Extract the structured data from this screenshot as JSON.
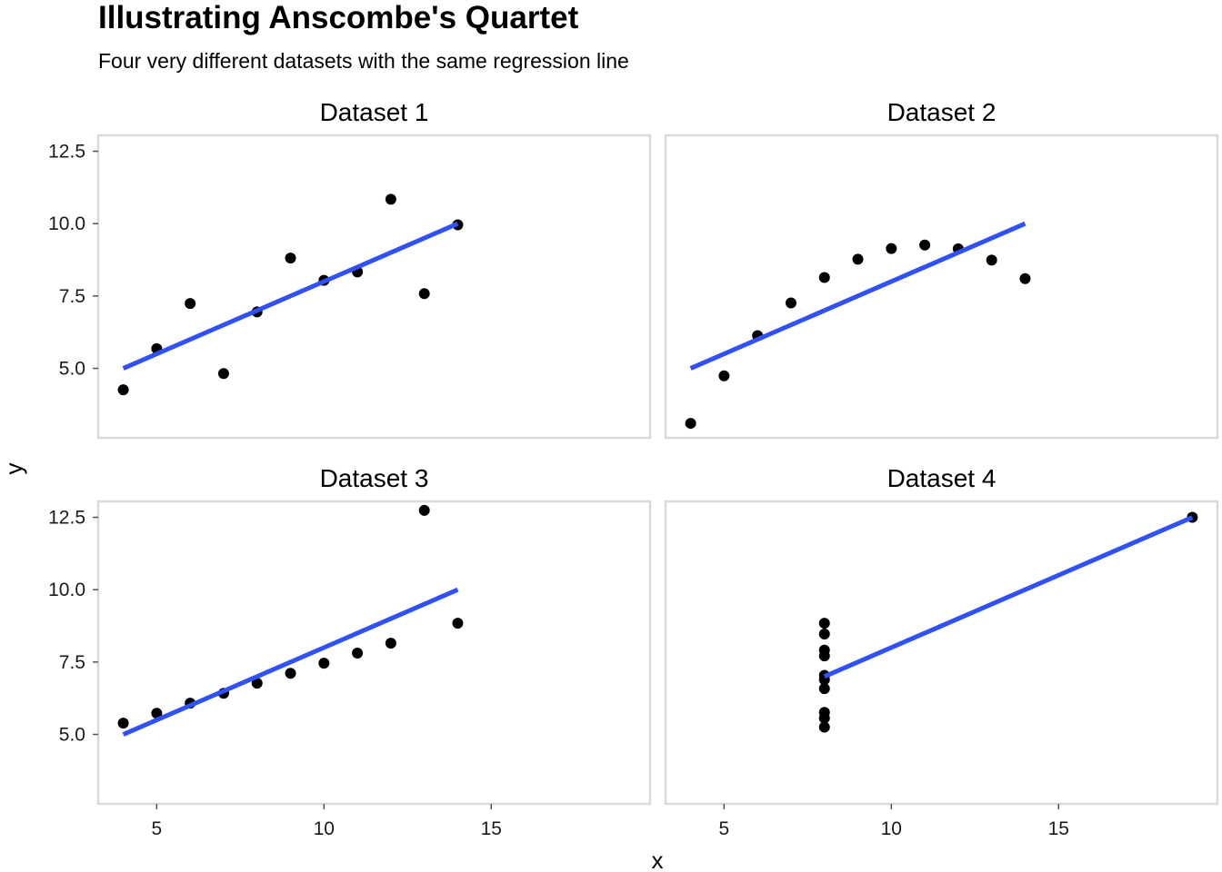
{
  "chart_data": {
    "type": "scatter",
    "title": "Illustrating Anscombe's Quartet",
    "subtitle": "Four very different datasets with the same regression line",
    "xlabel": "x",
    "ylabel": "y",
    "xlim": [
      3.25,
      19.75
    ],
    "ylim": [
      2.6,
      13.05
    ],
    "x_ticks": [
      "5",
      "10",
      "15"
    ],
    "y_ticks": [
      "5.0",
      "7.5",
      "10.0",
      "12.5"
    ],
    "x_tick_values": [
      5,
      10,
      15
    ],
    "y_tick_values": [
      5.0,
      7.5,
      10.0,
      12.5
    ],
    "grid": false,
    "colors": {
      "points": "#000000",
      "line": "#3050f8",
      "panel_border": "#d9d9d9"
    },
    "regression": {
      "intercept": 3.0,
      "slope": 0.5
    },
    "panels": [
      {
        "name": "Dataset 1",
        "x": [
          10,
          8,
          13,
          9,
          11,
          14,
          6,
          4,
          12,
          7,
          5
        ],
        "y": [
          8.04,
          6.95,
          7.58,
          8.81,
          8.33,
          9.96,
          7.24,
          4.26,
          10.84,
          4.82,
          5.68
        ],
        "line_x": [
          4,
          14
        ]
      },
      {
        "name": "Dataset 2",
        "x": [
          10,
          8,
          13,
          9,
          11,
          14,
          6,
          4,
          12,
          7,
          5
        ],
        "y": [
          9.14,
          8.14,
          8.74,
          8.77,
          9.26,
          8.1,
          6.13,
          3.1,
          9.13,
          7.26,
          4.74
        ],
        "line_x": [
          4,
          14
        ]
      },
      {
        "name": "Dataset 3",
        "x": [
          10,
          8,
          13,
          9,
          11,
          14,
          6,
          4,
          12,
          7,
          5
        ],
        "y": [
          7.46,
          6.77,
          12.74,
          7.11,
          7.81,
          8.84,
          6.08,
          5.39,
          8.15,
          6.42,
          5.73
        ],
        "line_x": [
          4,
          14
        ]
      },
      {
        "name": "Dataset 4",
        "x": [
          8,
          8,
          8,
          8,
          8,
          8,
          8,
          19,
          8,
          8,
          8
        ],
        "y": [
          6.58,
          5.76,
          7.71,
          8.84,
          8.47,
          7.04,
          5.25,
          12.5,
          5.56,
          7.91,
          6.89
        ],
        "line_x": [
          8,
          19
        ]
      }
    ]
  }
}
